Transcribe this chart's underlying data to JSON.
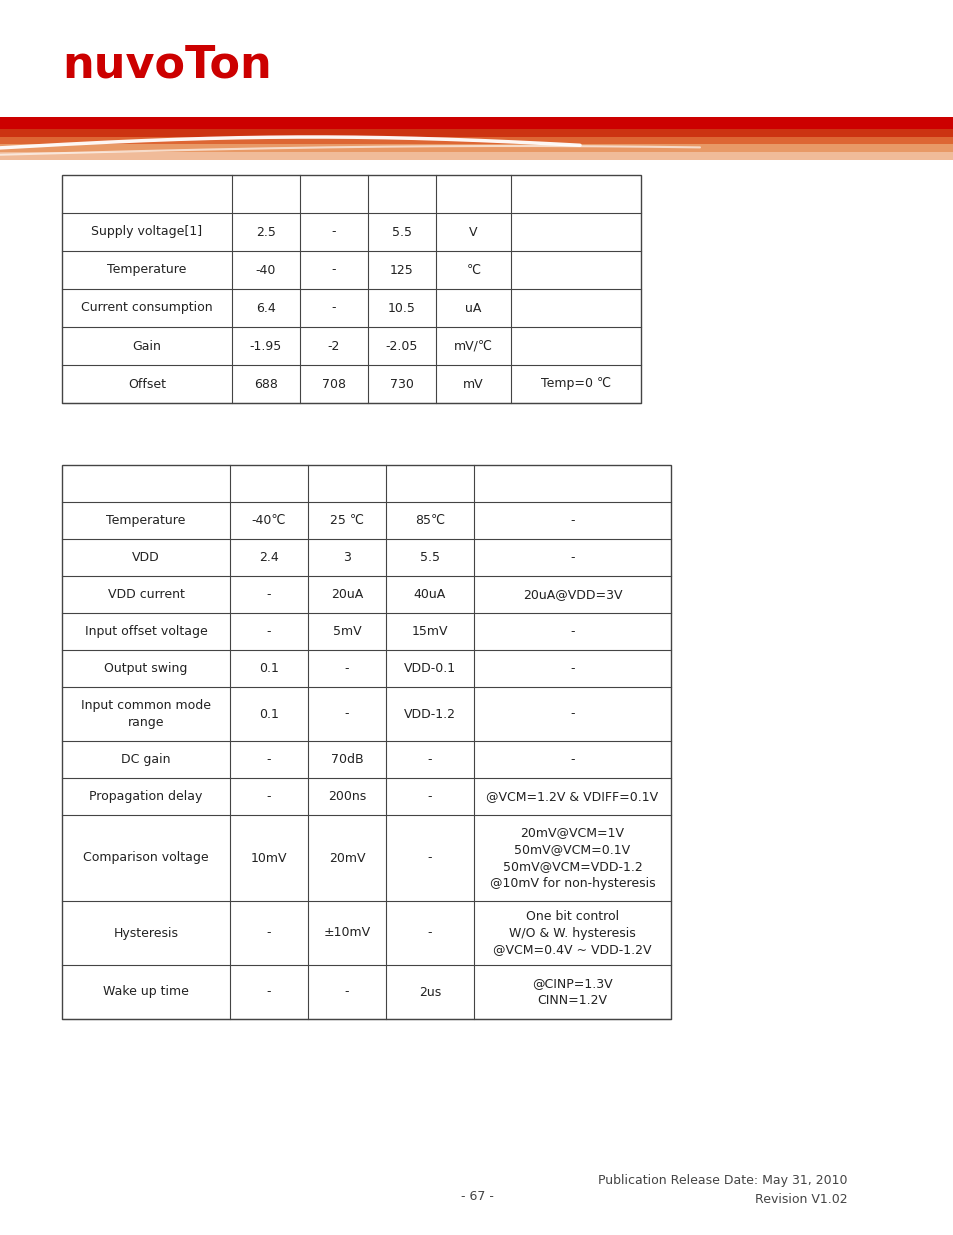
{
  "bg_color": "#ffffff",
  "table1_header": [
    "",
    "",
    "",
    "",
    "",
    ""
  ],
  "table1_rows": [
    [
      "Supply voltage[1]",
      "2.5",
      "-",
      "5.5",
      "V",
      ""
    ],
    [
      "Temperature",
      "-40",
      "-",
      "125",
      "℃",
      ""
    ],
    [
      "Current consumption",
      "6.4",
      "-",
      "10.5",
      "uA",
      ""
    ],
    [
      "Gain",
      "-1.95",
      "-2",
      "-2.05",
      "mV/℃",
      ""
    ],
    [
      "Offset",
      "688",
      "708",
      "730",
      "mV",
      "Temp=0 ℃"
    ]
  ],
  "table2_header": [
    "",
    "",
    "",
    "",
    ""
  ],
  "table2_rows": [
    [
      "Temperature",
      "-40℃",
      "25 ℃",
      "85℃",
      "-"
    ],
    [
      "VDD",
      "2.4",
      "3",
      "5.5",
      "-"
    ],
    [
      "VDD current",
      "-",
      "20uA",
      "40uA",
      "20uA@VDD=3V"
    ],
    [
      "Input offset voltage",
      "-",
      "5mV",
      "15mV",
      "-"
    ],
    [
      "Output swing",
      "0.1",
      "-",
      "VDD-0.1",
      "-"
    ],
    [
      "Input common mode\nrange",
      "0.1",
      "-",
      "VDD-1.2",
      "-"
    ],
    [
      "DC gain",
      "-",
      "70dB",
      "-",
      "-"
    ],
    [
      "Propagation delay",
      "-",
      "200ns",
      "-",
      "@VCM=1.2V & VDIFF=0.1V"
    ],
    [
      "Comparison voltage",
      "10mV",
      "20mV",
      "-",
      "20mV@VCM=1V\n50mV@VCM=0.1V\n50mV@VCM=VDD-1.2\n@10mV for non-hysteresis"
    ],
    [
      "Hysteresis",
      "-",
      "±10mV",
      "-",
      "One bit control\nW/O & W. hysteresis\n@VCM=0.4V ~ VDD-1.2V"
    ],
    [
      "Wake up time",
      "-",
      "-",
      "2us",
      "@CINP=1.3V\nCINN=1.2V"
    ]
  ],
  "footer_center": "- 67 -",
  "footer_right": "Publication Release Date: May 31, 2010\nRevision V1.02",
  "logo_color": "#cc0000",
  "line_color": "#444444",
  "text_color": "#222222"
}
